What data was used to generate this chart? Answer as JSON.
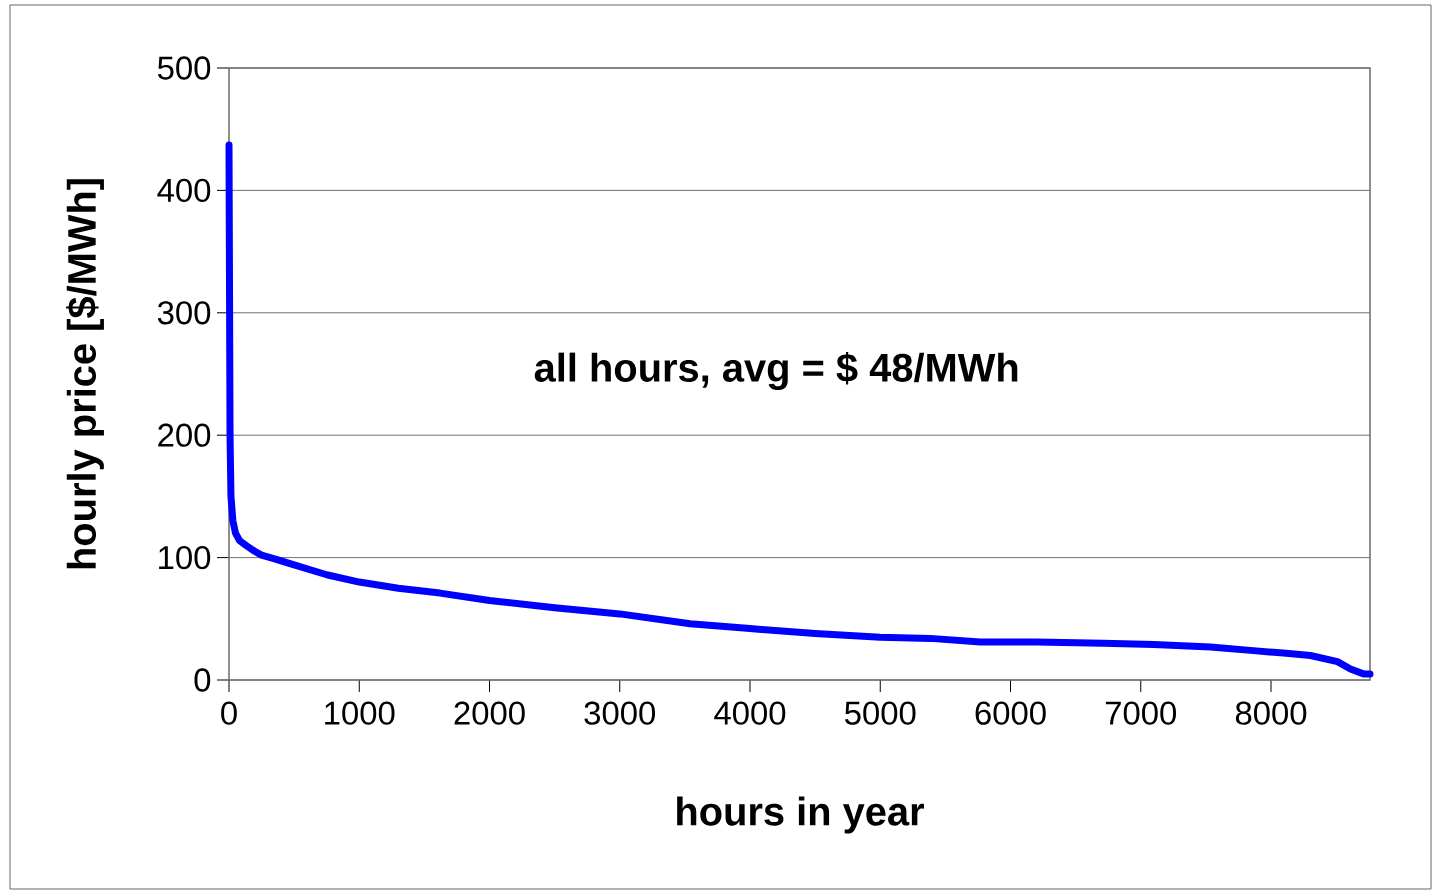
{
  "chart_data": {
    "type": "line",
    "xlabel": "hours in year",
    "ylabel": "hourly price [$/MWh]",
    "annotations": [
      "all hours, avg = $ 48/MWh"
    ],
    "series": [
      {
        "color": "#0000ff",
        "x": [
          0,
          8,
          15,
          30,
          50,
          80,
          130,
          200,
          250,
          350,
          500,
          750,
          1000,
          1300,
          1620,
          2000,
          2500,
          3000,
          3540,
          4000,
          4500,
          5000,
          5384,
          5768,
          6200,
          6713,
          7100,
          7535,
          7865,
          8095,
          8303,
          8510,
          8610,
          8710,
          8760
        ],
        "values": [
          437,
          200,
          150,
          130,
          120,
          114,
          110,
          105,
          102,
          99,
          94,
          86,
          80,
          75,
          71,
          65,
          59,
          54,
          46,
          42,
          38,
          35,
          34,
          31,
          31,
          30,
          29,
          27,
          24,
          22,
          20,
          15,
          9,
          5,
          5
        ]
      }
    ],
    "xlim": [
      0,
      8760
    ],
    "ylim": [
      0,
      500
    ],
    "xticks": [
      0,
      1000,
      2000,
      3000,
      4000,
      5000,
      6000,
      7000,
      8000
    ],
    "yticks": [
      0,
      100,
      200,
      300,
      400,
      500
    ],
    "grid": "y",
    "marker": "none",
    "line_style": "solid"
  }
}
